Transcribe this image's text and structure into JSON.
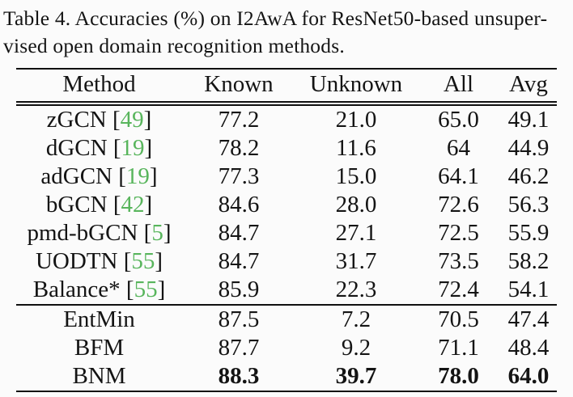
{
  "caption": {
    "line1": "Table 4. Accuracies (%) on I2AwA for ResNet50-based unsuper-",
    "line2": "vised open domain recognition methods."
  },
  "colors": {
    "citation_green": "#58b55c",
    "text": "#141414",
    "background": "#fbfbfb"
  },
  "table": {
    "columns": [
      "Method",
      "Known",
      "Unknown",
      "All",
      "Avg"
    ],
    "rows": [
      {
        "method": "zGCN",
        "cite": "49",
        "known": "77.2",
        "unknown": "21.0",
        "all": "65.0",
        "avg": "49.1"
      },
      {
        "method": "dGCN",
        "cite": "19",
        "known": "78.2",
        "unknown": "11.6",
        "all": "64",
        "avg": "44.9"
      },
      {
        "method": "adGCN",
        "cite": "19",
        "known": "77.3",
        "unknown": "15.0",
        "all": "64.1",
        "avg": "46.2"
      },
      {
        "method": "bGCN",
        "cite": "42",
        "known": "84.6",
        "unknown": "28.0",
        "all": "72.6",
        "avg": "56.3"
      },
      {
        "method": "pmd-bGCN",
        "cite": "5",
        "known": "84.7",
        "unknown": "27.1",
        "all": "72.5",
        "avg": "55.9"
      },
      {
        "method": "UODTN",
        "cite": "55",
        "known": "84.7",
        "unknown": "31.7",
        "all": "73.5",
        "avg": "58.2"
      },
      {
        "method": "Balance*",
        "cite": "55",
        "known": "85.9",
        "unknown": "22.3",
        "all": "72.4",
        "avg": "54.1"
      },
      {
        "method": "EntMin",
        "known": "87.5",
        "unknown": "7.2",
        "all": "70.5",
        "avg": "47.4"
      },
      {
        "method": "BFM",
        "known": "87.7",
        "unknown": "9.2",
        "all": "71.1",
        "avg": "48.4"
      },
      {
        "method": "BNM",
        "known": "88.3",
        "unknown": "39.7",
        "all": "78.0",
        "avg": "64.0"
      }
    ]
  }
}
